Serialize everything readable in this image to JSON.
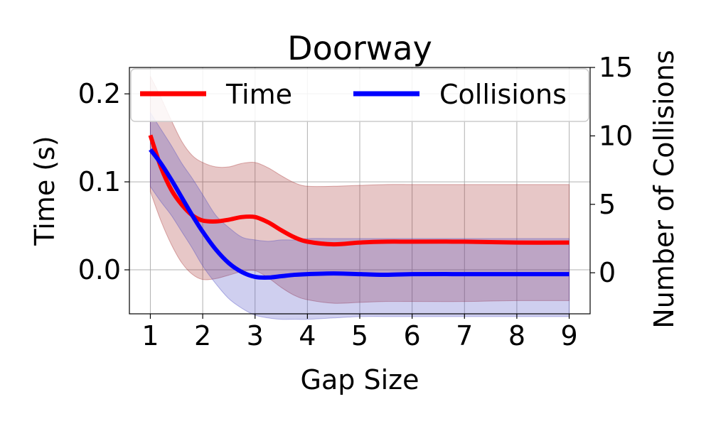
{
  "chart_data": {
    "type": "line",
    "title": "Doorway",
    "xlabel": "Gap Size",
    "ylabel_left": "Time (s)",
    "ylabel_right": "Number of Collisions",
    "xlim": [
      0.6,
      9.4
    ],
    "ylim_left": [
      -0.05,
      0.23
    ],
    "ylim_right": [
      -3,
      15
    ],
    "xticks": [
      1,
      2,
      3,
      4,
      5,
      6,
      7,
      8,
      9
    ],
    "yticks_left": [
      0.0,
      0.1,
      0.2
    ],
    "ytick_labels_left": [
      "0.0",
      "0.1",
      "0.2"
    ],
    "yticks_right": [
      0,
      5,
      10,
      15
    ],
    "ytick_labels_right": [
      "0",
      "5",
      "10",
      "15"
    ],
    "grid": true,
    "legend": {
      "placement": "top",
      "columns": 2
    },
    "series": [
      {
        "name": "Time",
        "axis": "left",
        "color": "#ff0000",
        "band_color": "#a02020",
        "x": [
          1.0,
          1.2,
          1.4,
          1.6,
          1.8,
          2.0,
          2.25,
          2.5,
          2.75,
          3.0,
          3.25,
          3.5,
          3.75,
          4.0,
          4.5,
          5.0,
          5.5,
          6.0,
          7.0,
          8.0,
          9.0
        ],
        "y": [
          0.153,
          0.117,
          0.091,
          0.074,
          0.062,
          0.056,
          0.055,
          0.057,
          0.06,
          0.06,
          0.054,
          0.045,
          0.037,
          0.032,
          0.029,
          0.031,
          0.032,
          0.032,
          0.032,
          0.031,
          0.031
        ],
        "lower": [
          0.089,
          0.056,
          0.029,
          0.008,
          -0.005,
          -0.011,
          -0.01,
          -0.006,
          -0.002,
          -0.001,
          -0.009,
          -0.02,
          -0.029,
          -0.034,
          -0.038,
          -0.037,
          -0.036,
          -0.036,
          -0.036,
          -0.035,
          -0.035
        ],
        "upper": [
          0.22,
          0.196,
          0.17,
          0.146,
          0.13,
          0.122,
          0.117,
          0.117,
          0.121,
          0.122,
          0.116,
          0.107,
          0.099,
          0.095,
          0.095,
          0.096,
          0.097,
          0.097,
          0.097,
          0.097,
          0.097
        ]
      },
      {
        "name": "Collisions",
        "axis": "right",
        "color": "#0000ff",
        "band_color": "#4040c0",
        "x": [
          1.0,
          1.2,
          1.4,
          1.6,
          1.8,
          2.0,
          2.25,
          2.5,
          2.75,
          3.0,
          3.25,
          3.5,
          3.75,
          4.0,
          4.5,
          5.0,
          5.5,
          6.0,
          7.0,
          8.0,
          9.0
        ],
        "y": [
          9.0,
          8.0,
          6.8,
          5.5,
          4.2,
          3.0,
          1.7,
          0.7,
          0.05,
          -0.3,
          -0.35,
          -0.25,
          -0.15,
          -0.1,
          -0.05,
          -0.1,
          -0.15,
          -0.1,
          -0.1,
          -0.1,
          -0.1
        ],
        "lower": [
          6.3,
          5.2,
          4.2,
          3.0,
          1.8,
          0.5,
          -0.8,
          -1.9,
          -2.6,
          -3.1,
          -3.3,
          -3.4,
          -3.4,
          -3.4,
          -3.3,
          -3.2,
          -3.2,
          -3.2,
          -3.2,
          -3.2,
          -3.2
        ],
        "upper": [
          11.7,
          10.5,
          9.3,
          8.0,
          6.9,
          5.7,
          4.2,
          3.3,
          2.6,
          2.4,
          2.3,
          2.4,
          2.4,
          2.5,
          2.5,
          2.5,
          2.5,
          2.5,
          2.5,
          2.5,
          2.5
        ]
      }
    ]
  }
}
